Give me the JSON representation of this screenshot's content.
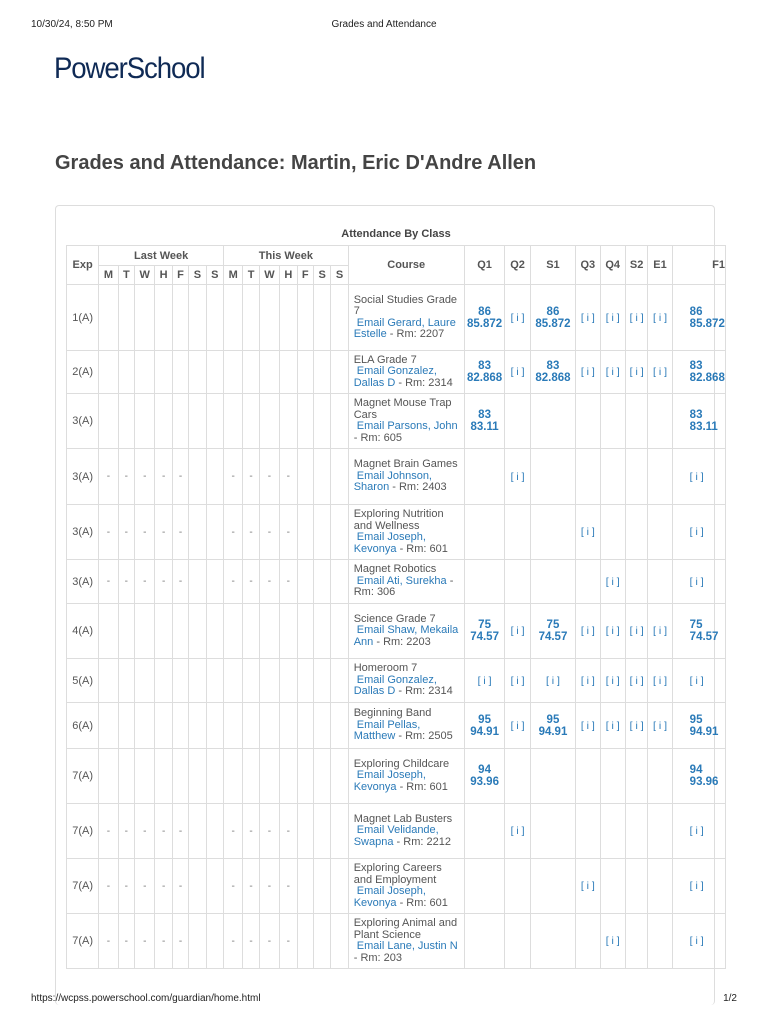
{
  "print_header": {
    "date": "10/30/24, 8:50 PM",
    "title": "Grades and Attendance"
  },
  "logo": "PowerSchool",
  "page_title": "Grades and Attendance: Martin, Eric D'Andre Allen",
  "table": {
    "caption": "Attendance By Class",
    "headers": {
      "exp": "Exp",
      "last_week": "Last Week",
      "this_week": "This Week",
      "days": [
        "M",
        "T",
        "W",
        "H",
        "F",
        "S",
        "S"
      ],
      "course": "Course",
      "terms": [
        "Q1",
        "Q2",
        "S1",
        "Q3",
        "Q4",
        "S2",
        "E1",
        "F1"
      ]
    },
    "info_label": "[ i ]",
    "rows": [
      {
        "exp": "1(A)",
        "last": [
          "",
          "",
          "",
          "",
          "",
          "",
          ""
        ],
        "this": [
          "",
          "",
          "",
          "",
          "",
          "",
          ""
        ],
        "course": "Social Studies Grade 7",
        "email": "Email Gerard, Laure Estelle",
        "room": " - Rm: 2207",
        "terms": [
          [
            "86",
            "85.872"
          ],
          "[ i ]",
          [
            "86",
            "85.872"
          ],
          "[ i ]",
          "[ i ]",
          "[ i ]",
          "[ i ]",
          [
            "86",
            "85.872"
          ]
        ]
      },
      {
        "exp": "2(A)",
        "last": [
          "",
          "",
          "",
          "",
          "",
          "",
          ""
        ],
        "this": [
          "",
          "",
          "",
          "",
          "",
          "",
          ""
        ],
        "course": "ELA Grade 7",
        "email": "Email Gonzalez, Dallas D",
        "room": " - Rm: 2314",
        "terms": [
          [
            "83",
            "82.868"
          ],
          "[ i ]",
          [
            "83",
            "82.868"
          ],
          "[ i ]",
          "[ i ]",
          "[ i ]",
          "[ i ]",
          [
            "83",
            "82.868"
          ]
        ]
      },
      {
        "exp": "3(A)",
        "last": [
          "",
          "",
          "",
          "",
          "",
          "",
          ""
        ],
        "this": [
          "",
          "",
          "",
          "",
          "",
          "",
          ""
        ],
        "course": "Magnet Mouse Trap Cars",
        "email": "Email Parsons, John",
        "room": " - Rm: 605",
        "terms": [
          [
            "83",
            "83.11"
          ],
          "",
          "",
          "",
          "",
          "",
          "",
          [
            "83",
            "83.11"
          ]
        ]
      },
      {
        "exp": "3(A)",
        "last": [
          "-",
          "-",
          "-",
          "-",
          "-",
          "",
          ""
        ],
        "this": [
          "-",
          "-",
          "-",
          "-",
          "",
          "",
          ""
        ],
        "course": "Magnet Brain Games",
        "email": "Email Johnson, Sharon",
        "room": " - Rm: 2403",
        "terms": [
          "",
          "[ i ]",
          "",
          "",
          "",
          "",
          "",
          "[ i ]"
        ]
      },
      {
        "exp": "3(A)",
        "last": [
          "-",
          "-",
          "-",
          "-",
          "-",
          "",
          ""
        ],
        "this": [
          "-",
          "-",
          "-",
          "-",
          "",
          "",
          ""
        ],
        "course": "Exploring Nutrition and Wellness",
        "email": "Email Joseph, Kevonya",
        "room": " - Rm: 601",
        "terms": [
          "",
          "",
          "",
          "[ i ]",
          "",
          "",
          "",
          "[ i ]"
        ]
      },
      {
        "exp": "3(A)",
        "last": [
          "-",
          "-",
          "-",
          "-",
          "-",
          "",
          ""
        ],
        "this": [
          "-",
          "-",
          "-",
          "-",
          "",
          "",
          ""
        ],
        "course": "Magnet Robotics",
        "email": "Email Ati, Surekha",
        "room": " - Rm: 306",
        "terms": [
          "",
          "",
          "",
          "",
          "[ i ]",
          "",
          "",
          "[ i ]"
        ]
      },
      {
        "exp": "4(A)",
        "last": [
          "",
          "",
          "",
          "",
          "",
          "",
          ""
        ],
        "this": [
          "",
          "",
          "",
          "",
          "",
          "",
          ""
        ],
        "course": "Science Grade 7",
        "email": "Email Shaw, Mekaila Ann",
        "room": " - Rm: 2203",
        "terms": [
          [
            "75",
            "74.57"
          ],
          "[ i ]",
          [
            "75",
            "74.57"
          ],
          "[ i ]",
          "[ i ]",
          "[ i ]",
          "[ i ]",
          [
            "75",
            "74.57"
          ]
        ]
      },
      {
        "exp": "5(A)",
        "last": [
          "",
          "",
          "",
          "",
          "",
          "",
          ""
        ],
        "this": [
          "",
          "",
          "",
          "",
          "",
          "",
          ""
        ],
        "course": "Homeroom 7",
        "email": "Email Gonzalez, Dallas D",
        "room": " - Rm: 2314",
        "terms": [
          "[ i ]",
          "[ i ]",
          "[ i ]",
          "[ i ]",
          "[ i ]",
          "[ i ]",
          "[ i ]",
          "[ i ]"
        ]
      },
      {
        "exp": "6(A)",
        "last": [
          "",
          "",
          "",
          "",
          "",
          "",
          ""
        ],
        "this": [
          "",
          "",
          "",
          "",
          "",
          "",
          ""
        ],
        "course": "Beginning Band",
        "email": "Email Pellas, Matthew",
        "room": " - Rm: 2505",
        "terms": [
          [
            "95",
            "94.91"
          ],
          "[ i ]",
          [
            "95",
            "94.91"
          ],
          "[ i ]",
          "[ i ]",
          "[ i ]",
          "[ i ]",
          [
            "95",
            "94.91"
          ]
        ]
      },
      {
        "exp": "7(A)",
        "last": [
          "",
          "",
          "",
          "",
          "",
          "",
          ""
        ],
        "this": [
          "",
          "",
          "",
          "",
          "",
          "",
          ""
        ],
        "course": "Exploring Childcare",
        "email": "Email Joseph, Kevonya",
        "room": " - Rm: 601",
        "terms": [
          [
            "94",
            "93.96"
          ],
          "",
          "",
          "",
          "",
          "",
          "",
          [
            "94",
            "93.96"
          ]
        ]
      },
      {
        "exp": "7(A)",
        "last": [
          "-",
          "-",
          "-",
          "-",
          "-",
          "",
          ""
        ],
        "this": [
          "-",
          "-",
          "-",
          "-",
          "",
          "",
          ""
        ],
        "course": "Magnet Lab Busters",
        "email": "Email Velidande, Swapna",
        "room": " - Rm: 2212",
        "terms": [
          "",
          "[ i ]",
          "",
          "",
          "",
          "",
          "",
          "[ i ]"
        ]
      },
      {
        "exp": "7(A)",
        "last": [
          "-",
          "-",
          "-",
          "-",
          "-",
          "",
          ""
        ],
        "this": [
          "-",
          "-",
          "-",
          "-",
          "",
          "",
          ""
        ],
        "course": "Exploring Careers and Employment",
        "email": "Email Joseph, Kevonya",
        "room": " - Rm: 601",
        "terms": [
          "",
          "",
          "",
          "[ i ]",
          "",
          "",
          "",
          "[ i ]"
        ]
      },
      {
        "exp": "7(A)",
        "last": [
          "-",
          "-",
          "-",
          "-",
          "-",
          "",
          ""
        ],
        "this": [
          "-",
          "-",
          "-",
          "-",
          "",
          "",
          ""
        ],
        "course": "Exploring Animal and Plant Science",
        "email": "Email Lane, Justin N",
        "room": " - Rm: 203",
        "terms": [
          "",
          "",
          "",
          "",
          "[ i ]",
          "",
          "",
          "[ i ]"
        ]
      }
    ]
  },
  "print_footer": {
    "url": "https://wcpss.powerschool.com/guardian/home.html",
    "page": "1/2"
  }
}
